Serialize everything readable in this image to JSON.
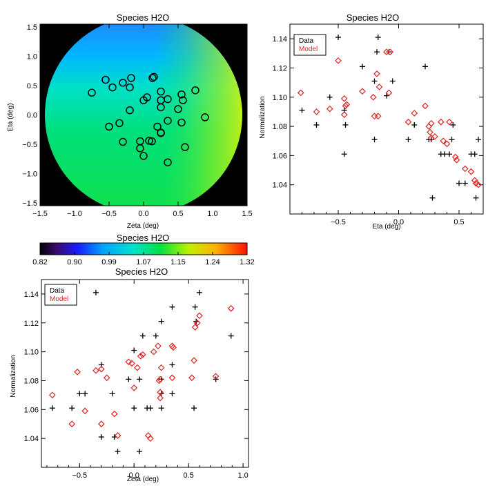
{
  "chart_data": [
    {
      "id": "map",
      "type": "scatter",
      "title": "Species H2O",
      "xlabel": "Zeta (deg)",
      "ylabel": "Eta (deg)",
      "xlim": [
        -1.5,
        1.5
      ],
      "ylim": [
        -1.55,
        1.55
      ],
      "xticks": [
        "−1.5",
        "−1.0",
        "−0.5",
        "0.0",
        "0.5",
        "1.0",
        "1.5"
      ],
      "yticks": [
        "−1.5",
        "−1.0",
        "−0.5",
        "0.0",
        "0.5",
        "1.0",
        "1.5"
      ],
      "background": "#000000",
      "circle_radius_deg": 1.4,
      "points": [
        [
          -0.75,
          0.38
        ],
        [
          -0.55,
          0.6
        ],
        [
          -0.45,
          0.47
        ],
        [
          -0.3,
          0.55
        ],
        [
          -0.18,
          0.63
        ],
        [
          -0.2,
          0.47
        ],
        [
          0.15,
          0.65
        ],
        [
          0.13,
          0.63
        ],
        [
          0.25,
          0.4
        ],
        [
          0.0,
          0.25
        ],
        [
          0.05,
          0.3
        ],
        [
          0.25,
          0.25
        ],
        [
          0.35,
          0.27
        ],
        [
          0.55,
          0.35
        ],
        [
          0.75,
          0.42
        ],
        [
          0.57,
          0.25
        ],
        [
          -0.2,
          0.08
        ],
        [
          0.25,
          0.13
        ],
        [
          0.5,
          0.1
        ],
        [
          0.89,
          -0.04
        ],
        [
          -0.35,
          -0.14
        ],
        [
          -0.5,
          -0.2
        ],
        [
          0.2,
          -0.2
        ],
        [
          0.35,
          -0.1
        ],
        [
          0.55,
          -0.13
        ],
        [
          0.25,
          -0.3
        ],
        [
          -0.05,
          -0.45
        ],
        [
          0.08,
          -0.44
        ],
        [
          0.12,
          -0.45
        ],
        [
          0.25,
          -0.31
        ],
        [
          -0.3,
          -0.46
        ],
        [
          0.6,
          -0.55
        ],
        [
          -0.05,
          -0.57
        ],
        [
          0.0,
          -0.7
        ],
        [
          0.35,
          -0.81
        ]
      ]
    },
    {
      "id": "colorbar",
      "type": "heatmap",
      "title": "Species H2O",
      "tick_labels": [
        "0.82",
        "0.90",
        "0.99",
        "1.07",
        "1.15",
        "1.24",
        "1.32"
      ],
      "range": [
        0.82,
        1.32
      ]
    },
    {
      "id": "eta",
      "type": "scatter",
      "title": "Species H2O",
      "xlabel": "Eta (deg)",
      "ylabel": "Normalization",
      "xlim": [
        -0.9,
        0.7
      ],
      "ylim": [
        1.02,
        1.15
      ],
      "xticks": [
        -0.5,
        0.0,
        0.5
      ],
      "xtick_labels": [
        "−0.5",
        "0.0",
        "0.5"
      ],
      "yticks": [
        1.04,
        1.06,
        1.08,
        1.1,
        1.12,
        1.14
      ],
      "ytick_labels": [
        "1.04",
        "1.06",
        "1.08",
        "1.10",
        "1.12",
        "1.14"
      ],
      "legend": [
        "Data",
        "Model"
      ],
      "legend_position": "top-left",
      "series": [
        {
          "name": "Data",
          "marker": "plus",
          "color": "#000000",
          "points": [
            [
              -0.8,
              1.091
            ],
            [
              -0.68,
              1.081
            ],
            [
              -0.57,
              1.1
            ],
            [
              -0.5,
              1.141
            ],
            [
              -0.45,
              1.091
            ],
            [
              -0.44,
              1.081
            ],
            [
              -0.45,
              1.061
            ],
            [
              -0.3,
              1.121
            ],
            [
              -0.2,
              1.071
            ],
            [
              -0.18,
              1.131
            ],
            [
              -0.17,
              1.141
            ],
            [
              -0.1,
              1.101
            ],
            [
              -0.08,
              1.131
            ],
            [
              -0.05,
              1.111
            ],
            [
              0.08,
              1.071
            ],
            [
              0.13,
              1.081
            ],
            [
              0.22,
              1.121
            ],
            [
              0.25,
              1.071
            ],
            [
              0.28,
              1.031
            ],
            [
              0.35,
              1.061
            ],
            [
              0.38,
              1.061
            ],
            [
              0.42,
              1.061
            ],
            [
              0.44,
              1.071
            ],
            [
              0.45,
              1.081
            ],
            [
              0.5,
              1.041
            ],
            [
              0.55,
              1.041
            ],
            [
              0.6,
              1.061
            ],
            [
              0.63,
              1.061
            ],
            [
              0.64,
              1.031
            ],
            [
              0.66,
              1.071
            ],
            [
              -0.2,
              1.111
            ],
            [
              0.27,
              1.071
            ]
          ]
        },
        {
          "name": "Model",
          "marker": "diamond",
          "color": "#dd2222",
          "points": [
            [
              -0.81,
              1.103
            ],
            [
              -0.68,
              1.09
            ],
            [
              -0.57,
              1.092
            ],
            [
              -0.5,
              1.125
            ],
            [
              -0.45,
              1.099
            ],
            [
              -0.45,
              1.088
            ],
            [
              -0.43,
              1.095
            ],
            [
              -0.44,
              1.094
            ],
            [
              -0.3,
              1.104
            ],
            [
              -0.21,
              1.1
            ],
            [
              -0.2,
              1.087
            ],
            [
              -0.18,
              1.116
            ],
            [
              -0.17,
              1.087
            ],
            [
              -0.16,
              1.107
            ],
            [
              -0.1,
              1.131
            ],
            [
              -0.08,
              1.103
            ],
            [
              -0.07,
              1.131
            ],
            [
              0.08,
              1.083
            ],
            [
              0.13,
              1.089
            ],
            [
              0.22,
              1.094
            ],
            [
              0.25,
              1.08
            ],
            [
              0.26,
              1.076
            ],
            [
              0.27,
              1.082
            ],
            [
              0.3,
              1.073
            ],
            [
              0.35,
              1.083
            ],
            [
              0.37,
              1.07
            ],
            [
              0.4,
              1.068
            ],
            [
              0.42,
              1.083
            ],
            [
              0.47,
              1.059
            ],
            [
              0.48,
              1.057
            ],
            [
              0.55,
              1.051
            ],
            [
              0.6,
              1.049
            ],
            [
              0.63,
              1.043
            ],
            [
              0.64,
              1.041
            ],
            [
              0.66,
              1.04
            ],
            [
              0.27,
              1.072
            ]
          ]
        }
      ]
    },
    {
      "id": "zeta",
      "type": "scatter",
      "title": "Species H2O",
      "xlabel": "Zeta (deg)",
      "ylabel": "Normalization",
      "xlim": [
        -0.85,
        1.05
      ],
      "ylim": [
        1.02,
        1.15
      ],
      "xticks": [
        -0.5,
        0.0,
        0.5,
        1.0
      ],
      "xtick_labels": [
        "−0.5",
        "0.0",
        "0.5",
        "1.0"
      ],
      "yticks": [
        1.04,
        1.06,
        1.08,
        1.1,
        1.12,
        1.14
      ],
      "ytick_labels": [
        "1.04",
        "1.06",
        "1.08",
        "1.10",
        "1.12",
        "1.14"
      ],
      "legend": [
        "Data",
        "Model"
      ],
      "legend_position": "top-left",
      "series": [
        {
          "name": "Data",
          "marker": "plus",
          "color": "#000000",
          "points": [
            [
              -0.75,
              1.061
            ],
            [
              -0.57,
              1.061
            ],
            [
              -0.5,
              1.071
            ],
            [
              -0.45,
              1.071
            ],
            [
              -0.35,
              1.141
            ],
            [
              -0.3,
              1.091
            ],
            [
              -0.3,
              1.041
            ],
            [
              -0.2,
              1.071
            ],
            [
              -0.18,
              1.041
            ],
            [
              -0.15,
              1.031
            ],
            [
              -0.05,
              1.081
            ],
            [
              0.0,
              1.101
            ],
            [
              0.0,
              1.061
            ],
            [
              0.05,
              1.081
            ],
            [
              0.05,
              1.031
            ],
            [
              0.08,
              1.111
            ],
            [
              0.12,
              1.061
            ],
            [
              0.15,
              1.061
            ],
            [
              0.2,
              1.111
            ],
            [
              0.25,
              1.121
            ],
            [
              0.25,
              1.081
            ],
            [
              0.25,
              1.071
            ],
            [
              0.25,
              1.061
            ],
            [
              0.35,
              1.131
            ],
            [
              0.35,
              1.091
            ],
            [
              0.35,
              1.071
            ],
            [
              0.55,
              1.061
            ],
            [
              0.56,
              1.131
            ],
            [
              0.57,
              1.121
            ],
            [
              0.6,
              1.141
            ],
            [
              0.75,
              1.081
            ],
            [
              0.89,
              1.111
            ]
          ]
        },
        {
          "name": "Model",
          "marker": "diamond",
          "color": "#dd2222",
          "points": [
            [
              -0.75,
              1.07
            ],
            [
              -0.57,
              1.05
            ],
            [
              -0.52,
              1.086
            ],
            [
              -0.45,
              1.059
            ],
            [
              -0.35,
              1.087
            ],
            [
              -0.3,
              1.088
            ],
            [
              -0.3,
              1.05
            ],
            [
              -0.25,
              1.082
            ],
            [
              -0.18,
              1.057
            ],
            [
              -0.15,
              1.042
            ],
            [
              -0.05,
              1.093
            ],
            [
              -0.02,
              1.092
            ],
            [
              0.0,
              1.075
            ],
            [
              0.03,
              1.089
            ],
            [
              0.06,
              1.097
            ],
            [
              0.08,
              1.098
            ],
            [
              0.13,
              1.042
            ],
            [
              0.15,
              1.04
            ],
            [
              0.18,
              1.1
            ],
            [
              0.22,
              1.104
            ],
            [
              0.23,
              1.08
            ],
            [
              0.24,
              1.081
            ],
            [
              0.24,
              1.072
            ],
            [
              0.25,
              1.089
            ],
            [
              0.24,
              1.068
            ],
            [
              0.35,
              1.104
            ],
            [
              0.36,
              1.103
            ],
            [
              0.35,
              1.082
            ],
            [
              0.53,
              1.082
            ],
            [
              0.55,
              1.094
            ],
            [
              0.56,
              1.117
            ],
            [
              0.58,
              1.12
            ],
            [
              0.6,
              1.125
            ],
            [
              0.75,
              1.083
            ],
            [
              0.89,
              1.13
            ]
          ]
        }
      ]
    }
  ]
}
